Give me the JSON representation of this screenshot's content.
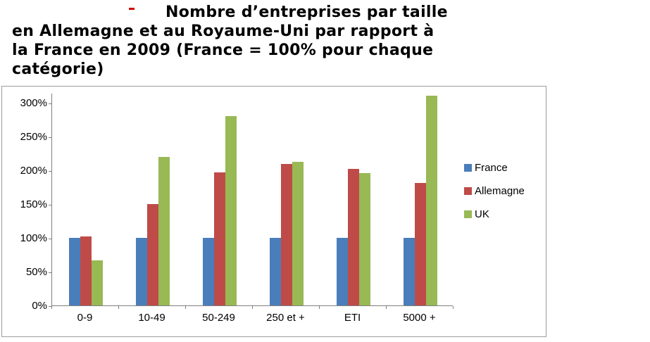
{
  "title": {
    "line1": "Nombre d’entreprises par taille",
    "line2": "en Allemagne et au Royaume-Uni par rapport à",
    "line3": "la France en 2009 (France = 100% pour chaque",
    "line4": "catégorie)"
  },
  "chart_data": {
    "type": "bar",
    "title": "Nombre d’entreprises par taille en Allemagne et au Royaume-Uni par rapport à la France en 2009 (France = 100% pour chaque catégorie)",
    "categories": [
      "0-9",
      "10-49",
      "50-249",
      "250 et +",
      "ETI",
      "5000 +"
    ],
    "series": [
      {
        "name": "France",
        "color": "#4A7EBB",
        "values": [
          100,
          100,
          100,
          100,
          100,
          100
        ]
      },
      {
        "name": "Allemagne",
        "color": "#BE4B48",
        "values": [
          102,
          150,
          197,
          209,
          202,
          181
        ]
      },
      {
        "name": "UK",
        "color": "#98B954",
        "values": [
          67,
          220,
          280,
          213,
          196,
          310
        ]
      }
    ],
    "xlabel": "",
    "ylabel": "",
    "y_ticks": [
      "0%",
      "50%",
      "100%",
      "150%",
      "200%",
      "250%",
      "300%"
    ],
    "ylim": [
      0,
      300
    ],
    "grid": false,
    "legend_position": "right"
  }
}
